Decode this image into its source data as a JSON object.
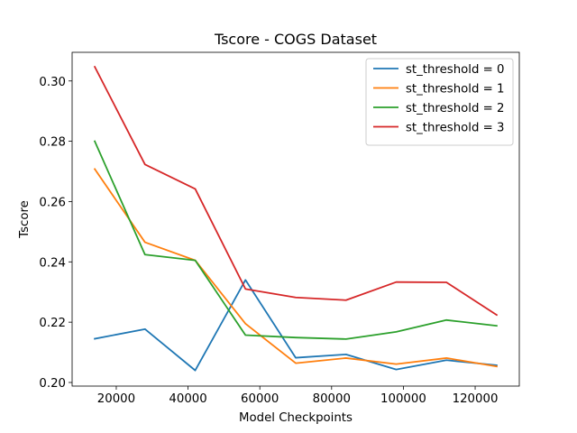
{
  "chart_data": {
    "type": "line",
    "title": "Tscore - COGS Dataset",
    "xlabel": "Model Checkpoints",
    "ylabel": "Tscore",
    "x": [
      14000,
      28000,
      42000,
      56000,
      70000,
      84000,
      98000,
      112000,
      126000
    ],
    "xlim": [
      7700,
      132300
    ],
    "ylim": [
      0.1988,
      0.3095
    ],
    "xticks": [
      20000,
      40000,
      60000,
      80000,
      100000,
      120000
    ],
    "xtick_labels": [
      "20000",
      "40000",
      "60000",
      "80000",
      "100000",
      "120000"
    ],
    "yticks": [
      0.2,
      0.22,
      0.24,
      0.26,
      0.28,
      0.3
    ],
    "ytick_labels": [
      "0.20",
      "0.22",
      "0.24",
      "0.26",
      "0.28",
      "0.30"
    ],
    "grid": false,
    "legend_position": "top-right",
    "series": [
      {
        "name": "st_threshold = 0",
        "color": "#1f77b4",
        "values": [
          0.2145,
          0.2177,
          0.204,
          0.234,
          0.2082,
          0.2093,
          0.2043,
          0.2074,
          0.2057
        ]
      },
      {
        "name": "st_threshold = 1",
        "color": "#ff7f0e",
        "values": [
          0.2708,
          0.2465,
          0.2405,
          0.2195,
          0.2064,
          0.2081,
          0.2061,
          0.2081,
          0.2053
        ]
      },
      {
        "name": "st_threshold = 2",
        "color": "#2ca02c",
        "values": [
          0.28,
          0.2424,
          0.2405,
          0.2157,
          0.2149,
          0.2144,
          0.2168,
          0.2207,
          0.2188
        ]
      },
      {
        "name": "st_threshold = 3",
        "color": "#d62728",
        "values": [
          0.3047,
          0.2723,
          0.2642,
          0.231,
          0.2282,
          0.2273,
          0.2333,
          0.2332,
          0.2224
        ]
      }
    ]
  }
}
